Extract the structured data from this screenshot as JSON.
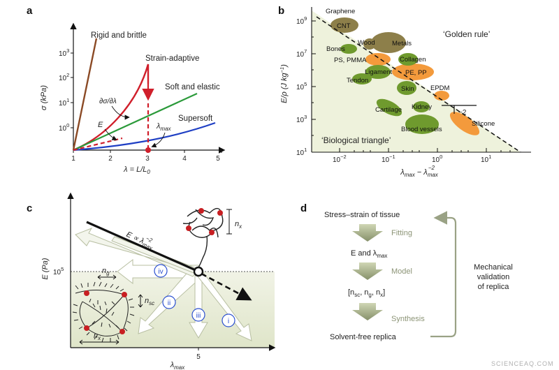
{
  "watermark": "SCIENCEAQ.COM",
  "panel_a": {
    "label": "a",
    "ylabel": "σ (kPa)",
    "xlabel": "λ = L/L",
    "xlabel_sub": "0",
    "xticks": [
      "1",
      "2",
      "3",
      "4",
      "5"
    ],
    "yticks": [
      {
        "base": "10",
        "exp": "0"
      },
      {
        "base": "10",
        "exp": "1"
      },
      {
        "base": "10",
        "exp": "2"
      },
      {
        "base": "10",
        "exp": "3"
      }
    ],
    "curves": {
      "rigid": "Rigid and brittle",
      "strain": "Strain-adaptive",
      "soft": "Soft and elastic",
      "supersoft": "Supersoft"
    },
    "annotations": {
      "slope": "∂σ/∂λ",
      "E": "E",
      "lambda_max": "λ",
      "lambda_max_sub": "max"
    },
    "colors": {
      "rigid": "#8b4a25",
      "strain": "#d01f2b",
      "soft": "#2b9a3a",
      "supersoft": "#1f3fc4"
    }
  },
  "panel_b": {
    "label": "b",
    "ylabel": "E/ρ (J kg",
    "ylabel_exp": "−1",
    "ylabel_end": ")",
    "xlabel": "λ",
    "xlabel_sub": "max",
    "xlabel_mid": " − λ",
    "xlabel_sub2": "max",
    "xlabel_sup2": "−2",
    "xticks": [
      {
        "base": "10",
        "exp": "−2"
      },
      {
        "base": "10",
        "exp": "−1"
      },
      {
        "base": "10",
        "exp": "0"
      },
      {
        "base": "10",
        "exp": "1"
      }
    ],
    "yticks": [
      {
        "base": "10",
        "exp": "1"
      },
      {
        "base": "10",
        "exp": "3"
      },
      {
        "base": "10",
        "exp": "5"
      },
      {
        "base": "10",
        "exp": "7"
      },
      {
        "base": "10",
        "exp": "9"
      }
    ],
    "golden_rule": "‘Golden rule’",
    "bio_triangle": "‘Biological triangle’",
    "slope_label": "−2",
    "materials": {
      "graphene": "Graphene",
      "cnt": "CNT",
      "wood": "Wood",
      "metals": "Metals",
      "bones": "Bones",
      "collagen": "Collagen",
      "ps_pmma": "PS, PMMA",
      "ligament": "Ligament",
      "pe_pp": "PE, PP",
      "tendon": "Tendon",
      "skin": "Skin",
      "epdm": "EPDM",
      "cartilage": "Cartilage",
      "kidney": "Kidney",
      "silicone": "Silicone",
      "blood_vessels": "Blood vessels"
    },
    "colors": {
      "natural": "#6f9a2e",
      "synthetic": "#f39a3c",
      "hard": "#8d7f4a",
      "triangle": "#eef2dc"
    }
  },
  "panel_c": {
    "label": "c",
    "ylabel": "E (Pa)",
    "xlabel": "λ",
    "xlabel_sub": "max",
    "xtick": "5",
    "ytick_base": "10",
    "ytick_exp": "5",
    "line_label": "E ∝ λ",
    "line_sub": "max",
    "line_exp": "−2",
    "nx": "n",
    "nx_sub": "x",
    "ng": "n",
    "ng_sub": "g",
    "nsc": "n",
    "nsc_sub": "sc",
    "routes": [
      "i",
      "ii",
      "iii",
      "iv"
    ]
  },
  "panel_d": {
    "label": "d",
    "steps": {
      "tissue": "Stress–strain of tissue",
      "fitting": "Fitting",
      "params": "E and λ",
      "params_sub": "max",
      "model": "Model",
      "vars_open": "[n",
      "vars_sc": "sc",
      "vars_g": ", n",
      "vars_gsub": "g",
      "vars_x": ", n",
      "vars_xsub": "x",
      "vars_close": "]",
      "synthesis": "Synthesis",
      "replica": "Solvent-free replica"
    },
    "side_label": [
      "Mechanical",
      "validation",
      "of replica"
    ]
  }
}
